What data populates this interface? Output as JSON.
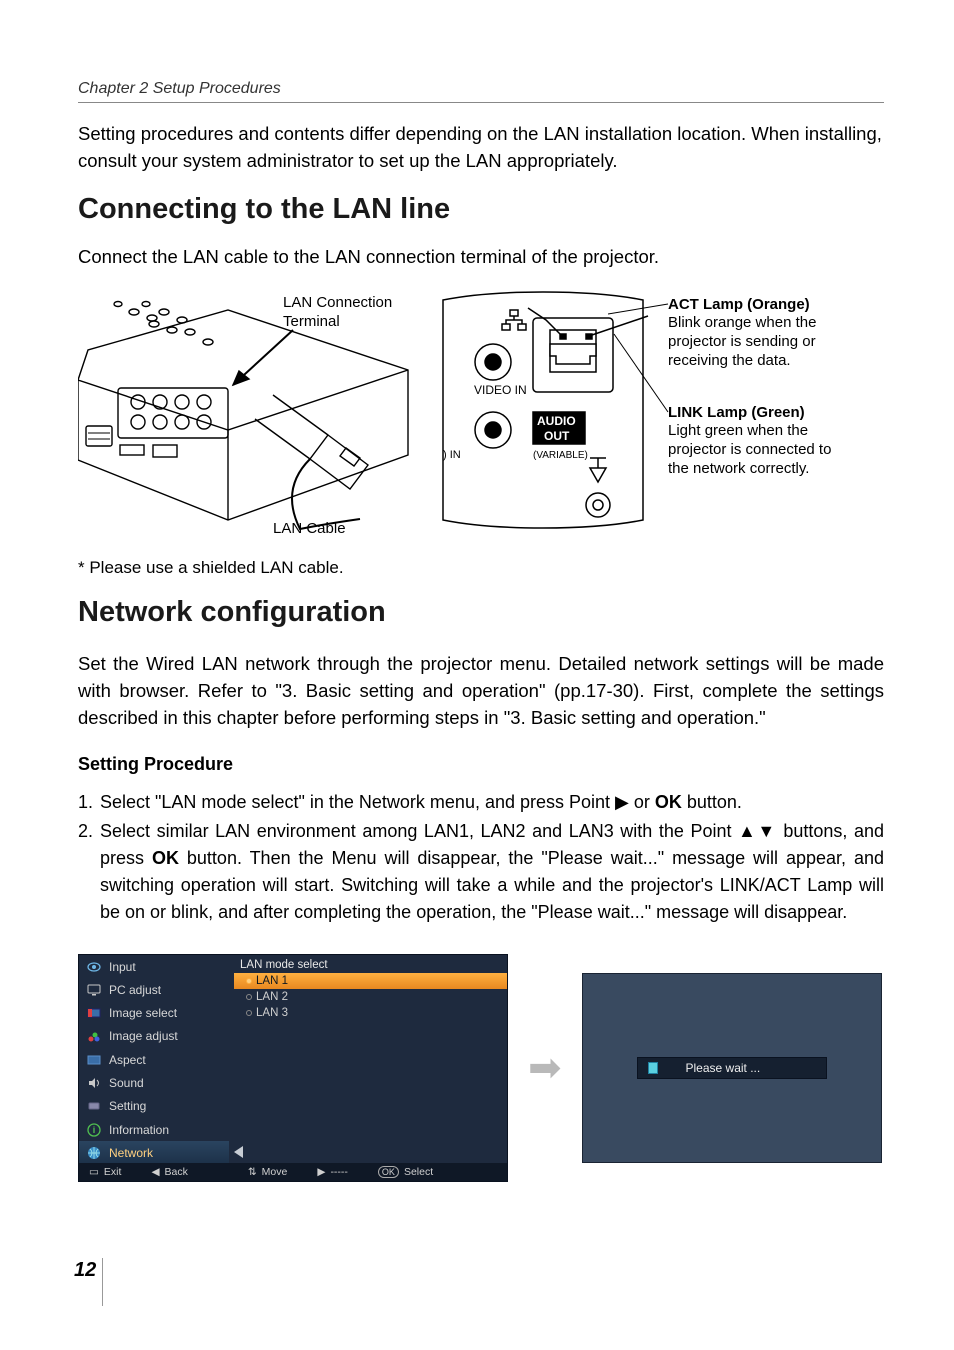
{
  "chapter_header": "Chapter 2 Setup Procedures",
  "intro_para": "Setting procedures and contents differ depending on the LAN installation location. When installing, consult your system administrator to set up the LAN appropriately.",
  "section1_title": "Connecting to the LAN line",
  "section1_para": "Connect the LAN cable to the LAN connection terminal of the projector.",
  "diagram": {
    "lan_connection_terminal": "LAN Connection Terminal",
    "lan_cable": "LAN Cable",
    "video_in": "VIDEO IN",
    "audio_out1": "AUDIO",
    "audio_out2": "OUT",
    "variable": "(VARIABLE)",
    "in_label": ") IN",
    "act_title": "ACT Lamp (Orange)",
    "act_desc": "Blink orange when the projector is sending or receiving the data.",
    "link_title": "LINK Lamp (Green)",
    "link_desc": "Light green when the projector is connected to the network correctly."
  },
  "footnote": "* Please use a shielded LAN cable.",
  "section2_title": "Network configuration",
  "section2_para": "Set the Wired LAN network through the projector menu. Detailed network settings will be made with browser. Refer to \"3. Basic setting and operation\" (pp.17-30). First, complete the settings described in this chapter before performing steps in \"3. Basic setting and operation.\"",
  "setting_procedure_heading": "Setting Procedure",
  "steps": {
    "s1_num": "1.",
    "s1_pre": "Select \"LAN mode select\" in the Network menu, and press Point ",
    "s1_arrow": "▶",
    "s1_mid": " or ",
    "s1_ok": "OK",
    "s1_post": " button.",
    "s2_num": "2.",
    "s2_pre": "Select similar LAN environment among LAN1, LAN2 and LAN3 with the Point ",
    "s2_arrows": "▲▼",
    "s2_mid": " buttons, and press ",
    "s2_ok": "OK",
    "s2_post": " button. Then the Menu will disappear, the \"Please wait...\" message will appear, and switching operation will start. Switching will take a while and the projector's LINK/ACT Lamp will be on or blink, and after completing the operation, the \"Please wait...\" message will disappear."
  },
  "menu": {
    "sidebar": [
      {
        "icon": "eye",
        "label": "Input"
      },
      {
        "icon": "pc",
        "label": "PC adjust"
      },
      {
        "icon": "imgsel",
        "label": "Image select"
      },
      {
        "icon": "imgadj",
        "label": "Image adjust"
      },
      {
        "icon": "aspect",
        "label": "Aspect"
      },
      {
        "icon": "sound",
        "label": "Sound"
      },
      {
        "icon": "setting",
        "label": "Setting"
      },
      {
        "icon": "info",
        "label": "Information"
      },
      {
        "icon": "network",
        "label": "Network"
      }
    ],
    "right_title": "LAN mode select",
    "right_items": [
      {
        "label": "LAN 1",
        "selected": true
      },
      {
        "label": "LAN 2",
        "selected": false
      },
      {
        "label": "LAN 3",
        "selected": false
      }
    ],
    "footer": {
      "exit": "Exit",
      "back": "Back",
      "move": "Move",
      "dashes": "-----",
      "select": "Select"
    }
  },
  "wait_text": "Please wait ...",
  "page_number": "12",
  "colors": {
    "menu_bg": "#1e2a3e",
    "highlight": "#ef8f1f",
    "selected_text": "#ffd080"
  }
}
